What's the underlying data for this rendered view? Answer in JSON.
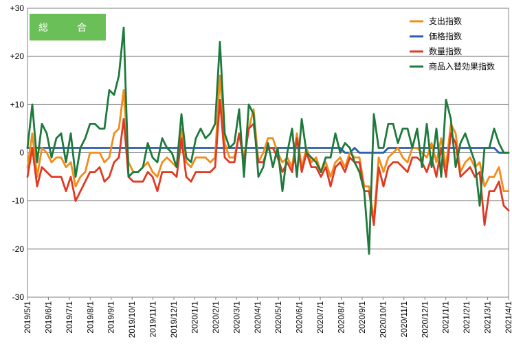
{
  "chart_data": {
    "type": "line",
    "title": "総　合",
    "title_box_color": "#6bbf59",
    "ylim": [
      -30,
      30
    ],
    "y_ticks": [
      30,
      20,
      10,
      0,
      -10,
      -20,
      -30
    ],
    "y_tick_labels": [
      "+30",
      "+20",
      "+10",
      "0",
      "-10",
      "-20",
      "-30"
    ],
    "grid": true,
    "legend_position": "top-right",
    "x_tick_labels": [
      "2019/5/1",
      "2019/6/1",
      "2019/7/1",
      "2019/8/1",
      "2019/9/1",
      "2019/10/1",
      "2019/11/1",
      "2019/12/1",
      "2020/1/1",
      "2020/2/1",
      "2020/3/1",
      "2020/4/1",
      "2020/5/1",
      "2020/6/1",
      "2020/7/1",
      "2020/8/1",
      "2020/9/1",
      "2020/10/1",
      "2020/11/1",
      "2020/12/1",
      "2021/1/1",
      "2021/2/1",
      "2021/3/1",
      "2021/4/1"
    ],
    "points_per_month": 4,
    "series": [
      {
        "name": "支出指数",
        "color": "#f28c1a",
        "values": [
          -3,
          4,
          -5,
          1,
          0,
          -2,
          -1,
          -1,
          -3,
          -2,
          -7,
          -5,
          -4,
          0,
          0,
          0,
          -2,
          -1,
          4,
          5,
          13,
          -2,
          -4,
          -4,
          -3,
          -2,
          -4,
          -5,
          -2,
          -1,
          -2,
          -3,
          5,
          -2,
          -3,
          -1,
          -1,
          -1,
          -2,
          -1,
          16,
          2,
          -1,
          -1,
          4,
          -1,
          5,
          9,
          -2,
          0,
          3,
          3,
          0,
          -2,
          -1,
          -3,
          4,
          -3,
          1,
          -2,
          -1,
          -4,
          -2,
          -5,
          -2,
          -1,
          -3,
          0,
          -1,
          -1,
          -7,
          -7,
          -14,
          -1,
          -4,
          -1,
          0,
          1,
          -1,
          -2,
          1,
          1,
          0,
          -1,
          2,
          -2,
          3,
          -3,
          6,
          4,
          -4,
          -2,
          -1,
          -3,
          -2,
          -7,
          -5,
          -5,
          -3,
          -8,
          -8
        ]
      },
      {
        "name": "価格指数",
        "color": "#2a5cad",
        "values": [
          1,
          1,
          1,
          1,
          1,
          1,
          1,
          1,
          1,
          1,
          1,
          1,
          1,
          1,
          1,
          1,
          1,
          1,
          1,
          1,
          1,
          1,
          1,
          1,
          1,
          1,
          1,
          1,
          1,
          1,
          1,
          1,
          1,
          1,
          1,
          1,
          1,
          1,
          1,
          1,
          1,
          1,
          1,
          1,
          1,
          1,
          1,
          1,
          1,
          1,
          1,
          1,
          1,
          1,
          1,
          1,
          1,
          1,
          1,
          1,
          1,
          1,
          1,
          1,
          1,
          1,
          0,
          0,
          1,
          0,
          0,
          0,
          0,
          0,
          0,
          1,
          1,
          1,
          1,
          1,
          1,
          1,
          1,
          1,
          1,
          1,
          1,
          1,
          1,
          1,
          1,
          1,
          1,
          1,
          1,
          1,
          1,
          1,
          0,
          0,
          0
        ]
      },
      {
        "name": "数量指数",
        "color": "#e03a24",
        "values": [
          -5,
          1,
          -7,
          -3,
          -4,
          -5,
          -5,
          -5,
          -8,
          -5,
          -10,
          -8,
          -6,
          -4,
          -4,
          -3,
          -6,
          -5,
          -2,
          -1,
          7,
          -5,
          -6,
          -6,
          -6,
          -4,
          -5,
          -8,
          -4,
          -4,
          -4,
          -5,
          3,
          -5,
          -6,
          -4,
          -4,
          -4,
          -4,
          -3,
          11,
          -1,
          -2,
          -2,
          4,
          -2,
          5,
          6,
          -2,
          -2,
          1,
          1,
          -1,
          -4,
          -2,
          -4,
          3,
          -4,
          0,
          -3,
          -3,
          -5,
          -3,
          -7,
          -3,
          -2,
          -4,
          -1,
          -2,
          -2,
          -8,
          -8,
          -15,
          -3,
          -7,
          -3,
          -2,
          -2,
          -3,
          -4,
          -1,
          -1,
          -2,
          -4,
          -1,
          -5,
          1,
          -5,
          4,
          2,
          -5,
          -4,
          -3,
          -5,
          -4,
          -15,
          -8,
          -8,
          -6,
          -11,
          -12
        ]
      },
      {
        "name": "商品入替効果指数",
        "color": "#1e7a3c",
        "values": [
          1,
          10,
          -2,
          6,
          4,
          -1,
          3,
          4,
          -2,
          4,
          -5,
          1,
          3,
          6,
          6,
          5,
          5,
          13,
          12,
          16,
          26,
          -5,
          -4,
          -4,
          -3,
          2,
          -1,
          -2,
          3,
          1,
          0,
          -3,
          8,
          -1,
          -2,
          3,
          5,
          3,
          4,
          6,
          23,
          4,
          1,
          2,
          9,
          -5,
          10,
          8,
          -5,
          -3,
          2,
          -3,
          1,
          -8,
          0,
          5,
          -5,
          7,
          0,
          -1,
          -2,
          -4,
          -1,
          -1,
          4,
          0,
          2,
          1,
          -2,
          -4,
          -8,
          -21,
          8,
          1,
          1,
          6,
          6,
          2,
          5,
          5,
          1,
          5,
          -3,
          6,
          -3,
          5,
          -5,
          11,
          7,
          -3,
          2,
          4,
          1,
          -2,
          -11,
          1,
          1,
          5,
          2,
          0,
          0
        ]
      }
    ]
  }
}
